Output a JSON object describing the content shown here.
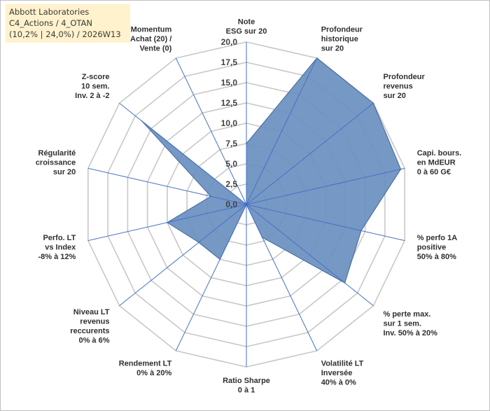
{
  "title": {
    "line1": "Abbott Laboratories",
    "line2": "C4_Actions / 4_OTAN",
    "line3": "(10,2% | 24,0%) / 2026W13"
  },
  "chart_data": {
    "type": "radar",
    "title": "Abbott Laboratories C4_Actions / 4_OTAN (10,2% | 24,0%) / 2026W13",
    "range": [
      0,
      20
    ],
    "ticks": [
      "0,0",
      "2,5",
      "5,0",
      "7,5",
      "10,0",
      "12,5",
      "15,0",
      "17,5",
      "20,0"
    ],
    "tick_values": [
      0,
      2.5,
      5,
      7.5,
      10,
      12.5,
      15,
      17.5,
      20
    ],
    "axes": [
      {
        "label": [
          "Note",
          "ESG sur 20"
        ],
        "value": 7.5
      },
      {
        "label": [
          "Profondeur",
          "historique",
          "sur 20"
        ],
        "value": 20
      },
      {
        "label": [
          "Profondeur",
          "revenus",
          "sur 20"
        ],
        "value": 20
      },
      {
        "label": [
          "Capi. bours.",
          "en MdEUR",
          "0 à 60 G€"
        ],
        "value": 19.5
      },
      {
        "label": [
          "% perfo 1A",
          "positive",
          "50% à 80%"
        ],
        "value": 14.5
      },
      {
        "label": [
          "% perte max.",
          "sur 1 sem.",
          "Inv. 50% à 20%"
        ],
        "value": 15.5
      },
      {
        "label": [
          "Volatilité LT",
          "Inversée",
          "40% à 0%"
        ],
        "value": 4.5
      },
      {
        "label": [
          "Ratio Sharpe",
          "0 à 1"
        ],
        "value": 0
      },
      {
        "label": [
          "Rendement LT",
          "0% à 20%"
        ],
        "value": 7.5
      },
      {
        "label": [
          "Niveau LT",
          "revenus",
          "reccurents",
          "0% à 6%"
        ],
        "value": 7.5
      },
      {
        "label": [
          "Perfo. LT",
          "vs Index",
          "-8% à 12%"
        ],
        "value": 10
      },
      {
        "label": [
          "Régularité",
          "croissance",
          "sur 20"
        ],
        "value": 4.5
      },
      {
        "label": [
          "Z-score",
          "10 sem.",
          "Inv. 2 à -2"
        ],
        "value": 16.5
      },
      {
        "label": [
          "Momentum",
          "Achat (20) /",
          "Vente (0)"
        ],
        "value": 0
      }
    ],
    "series": [
      {
        "name": "Abbott Laboratories",
        "color": "#6a8fc0"
      }
    ],
    "colors": {
      "fill": "#6a8fc0",
      "stroke": "#3f669c",
      "axis": "#4472c4",
      "grid": "#c8c8c8"
    }
  }
}
